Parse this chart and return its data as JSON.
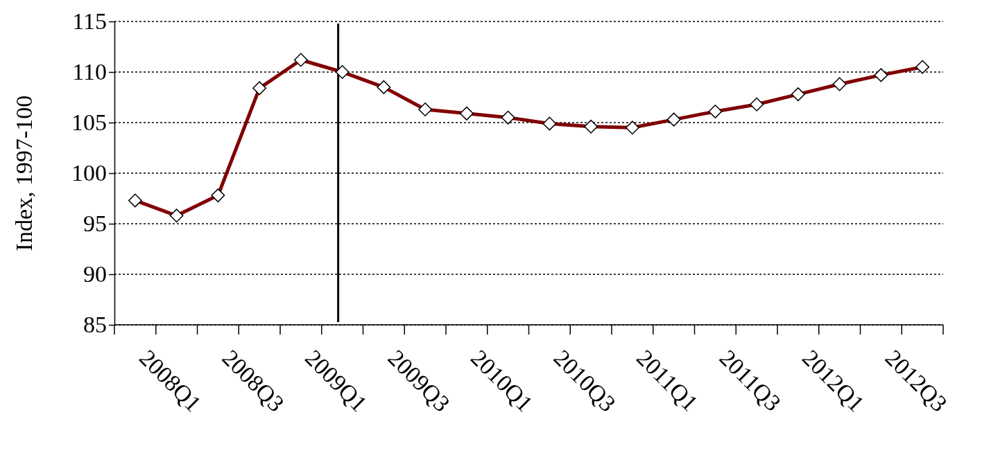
{
  "chart_data": {
    "type": "line",
    "ylabel": "Index, 1997-100",
    "categories": [
      "2008Q1",
      null,
      "2008Q3",
      null,
      "2009Q1",
      null,
      "2009Q3",
      null,
      "2010Q1",
      null,
      "2010Q3",
      null,
      "2011Q1",
      null,
      "2011Q3",
      null,
      "2012Q1",
      null,
      "2012Q3",
      null
    ],
    "series": [
      {
        "color": "#800000",
        "values": [
          97.3,
          95.8,
          97.8,
          108.4,
          111.2,
          110.0,
          108.5,
          106.3,
          105.9,
          105.5,
          104.9,
          104.6,
          104.5,
          105.3,
          106.1,
          106.8,
          107.8,
          108.8,
          109.7,
          110.5
        ]
      }
    ],
    "ylim": [
      85,
      115
    ],
    "yticks": [
      85,
      90,
      95,
      100,
      105,
      110,
      115
    ],
    "grid": "y",
    "marker": "diamond",
    "line_style": "solid"
  }
}
